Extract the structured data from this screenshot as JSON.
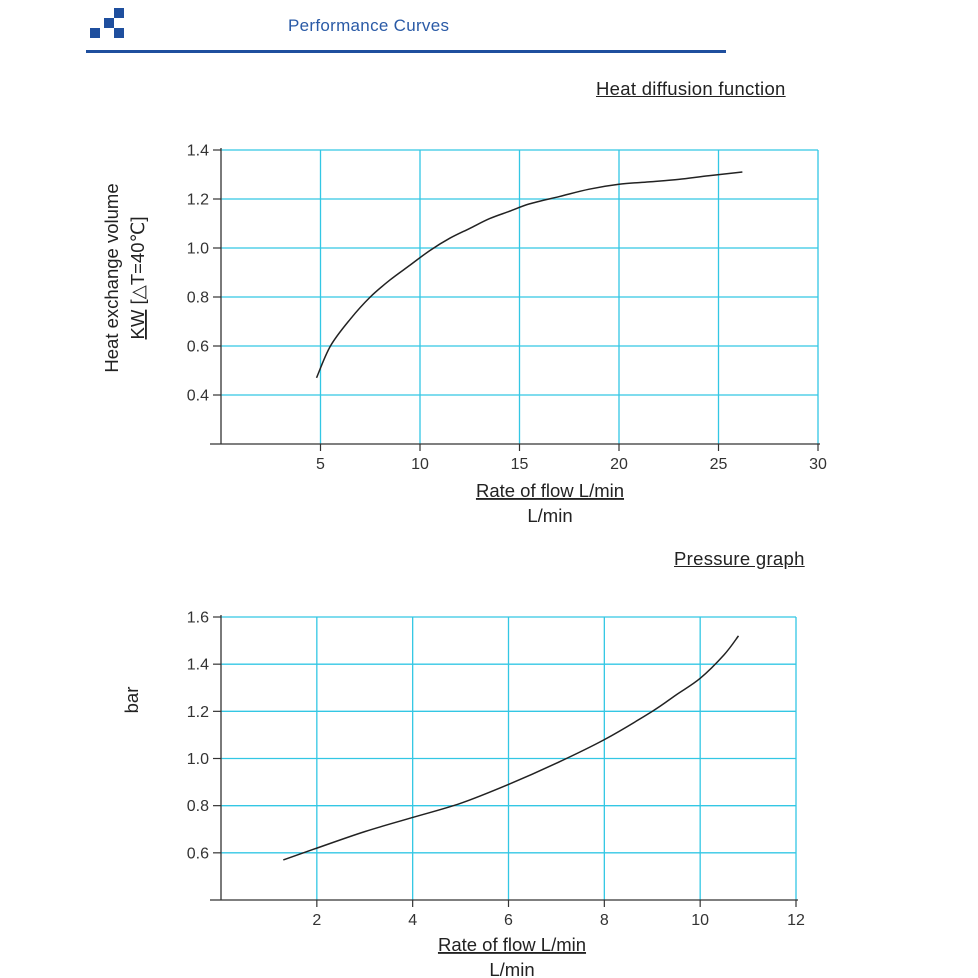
{
  "header": {
    "title": "Performance Curves",
    "accent_color": "#1f4f9e",
    "logo_icon": "blue-squares-logo"
  },
  "chart_data": [
    {
      "type": "line",
      "title": "Heat diffusion function",
      "xlabel": "Rate of flow L/min",
      "xlabel_sub": "L/min",
      "ylabel_line1": "Heat exchange volume",
      "ylabel_unit": "KW",
      "ylabel_cond": "[△T=40℃]",
      "xlim": [
        0,
        30
      ],
      "ylim": [
        0.2,
        1.4
      ],
      "x_ticks": [
        5,
        10,
        15,
        20,
        25,
        30
      ],
      "y_ticks": [
        0.4,
        0.6,
        0.8,
        1.0,
        1.2,
        1.4
      ],
      "y_tick_labels": [
        "0.4",
        "0.6",
        "0.8",
        "1.0",
        "1.2",
        "1.4"
      ],
      "grid": true,
      "grid_color": "#33c7e4",
      "series": [
        {
          "x": [
            4.8,
            5.5,
            6.5,
            7.5,
            8.5,
            9.5,
            10.5,
            11.5,
            12.5,
            13.5,
            14.5,
            15.5,
            17,
            18.5,
            20,
            21.5,
            23,
            24.5,
            26.2
          ],
          "y": [
            0.47,
            0.6,
            0.71,
            0.8,
            0.87,
            0.93,
            0.99,
            1.04,
            1.08,
            1.12,
            1.15,
            1.18,
            1.21,
            1.24,
            1.26,
            1.27,
            1.28,
            1.295,
            1.31
          ]
        }
      ]
    },
    {
      "type": "line",
      "title": "Pressure graph",
      "xlabel": "Rate of flow L/min",
      "xlabel_sub": "L/min",
      "ylabel": "bar",
      "xlim": [
        0,
        12
      ],
      "ylim": [
        0.4,
        1.6
      ],
      "x_ticks": [
        2,
        4,
        6,
        8,
        10,
        12
      ],
      "y_ticks": [
        0.6,
        0.8,
        1.0,
        1.2,
        1.4,
        1.6
      ],
      "y_tick_labels": [
        "0.6",
        "0.8",
        "1.0",
        "1.2",
        "1.4",
        "1.6"
      ],
      "grid": true,
      "grid_color": "#33c7e4",
      "series": [
        {
          "x": [
            1.3,
            2,
            3,
            4,
            5,
            6,
            7,
            8,
            9,
            9.5,
            10,
            10.5,
            10.8
          ],
          "y": [
            0.57,
            0.62,
            0.69,
            0.75,
            0.81,
            0.89,
            0.98,
            1.08,
            1.2,
            1.27,
            1.34,
            1.44,
            1.52
          ]
        }
      ]
    }
  ]
}
